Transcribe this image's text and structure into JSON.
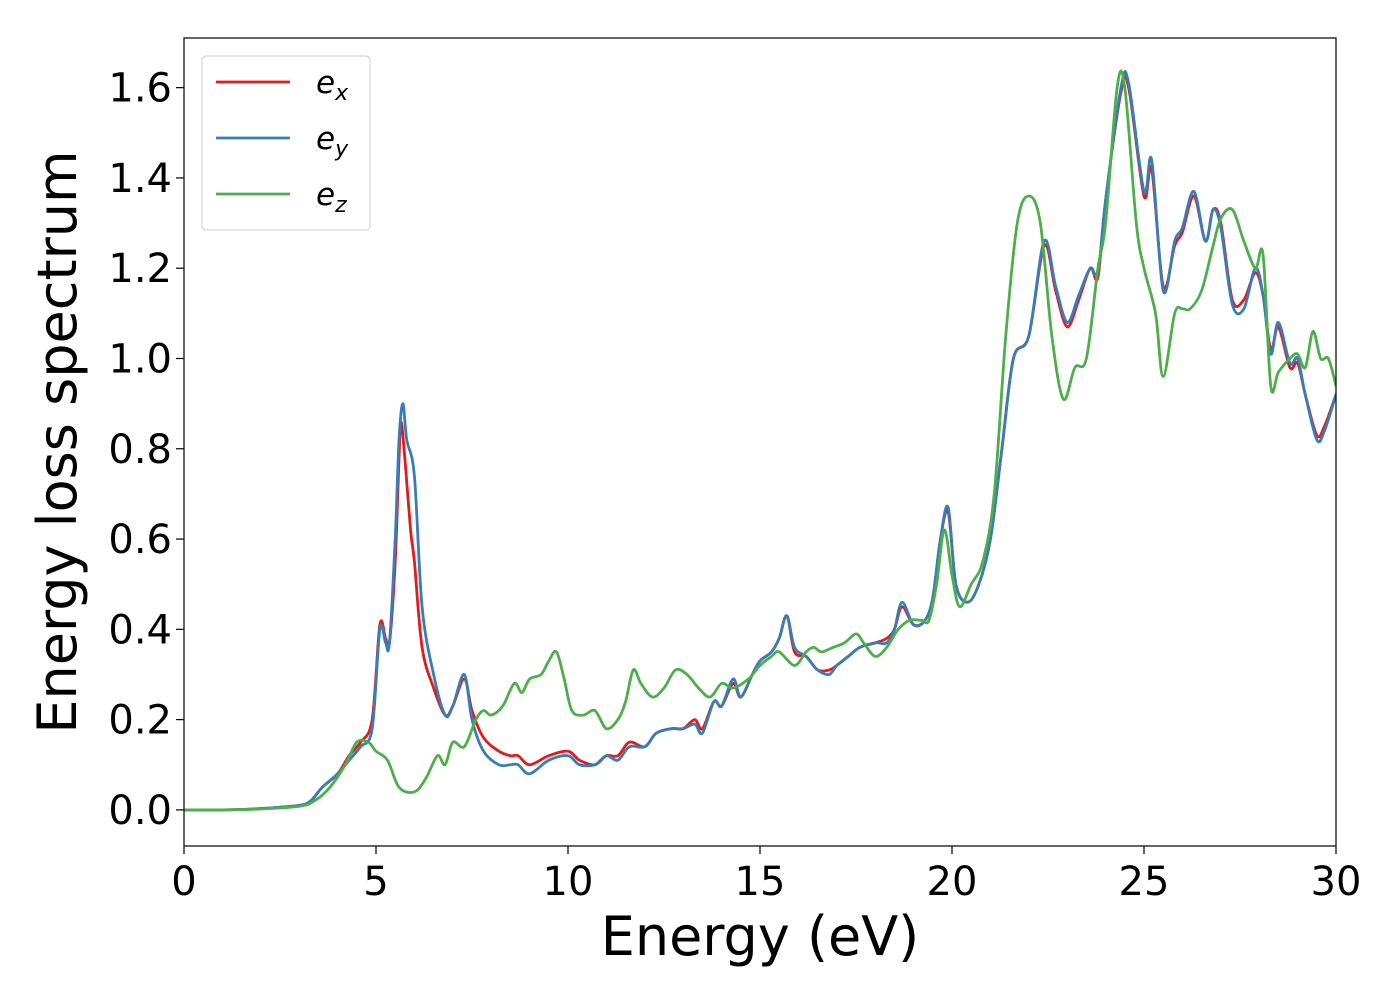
{
  "chart_data": {
    "type": "line",
    "title": "",
    "xlabel": "Energy (eV)",
    "ylabel": "Energy loss spectrum",
    "xlim": [
      0,
      30
    ],
    "ylim": [
      -0.08,
      1.71
    ],
    "xticks": [
      0,
      5,
      10,
      15,
      20,
      25,
      30
    ],
    "xtick_labels": [
      "0",
      "5",
      "10",
      "15",
      "20",
      "25",
      "30"
    ],
    "yticks": [
      0.0,
      0.2,
      0.4,
      0.6,
      0.8,
      1.0,
      1.2,
      1.4,
      1.6
    ],
    "ytick_labels": [
      "0.0",
      "0.2",
      "0.4",
      "0.6",
      "0.8",
      "1.0",
      "1.2",
      "1.4",
      "1.6"
    ],
    "grid": false,
    "legend_position": "top-left",
    "series": [
      {
        "name": "e_x",
        "label_base": "e",
        "label_sub": "x",
        "color": "#e41a1c",
        "points": [
          [
            0,
            0
          ],
          [
            1,
            0
          ],
          [
            2,
            0.003
          ],
          [
            3,
            0.01
          ],
          [
            3.3,
            0.02
          ],
          [
            3.6,
            0.05
          ],
          [
            4,
            0.08
          ],
          [
            4.3,
            0.12
          ],
          [
            4.6,
            0.15
          ],
          [
            4.9,
            0.2
          ],
          [
            5.1,
            0.41
          ],
          [
            5.25,
            0.38
          ],
          [
            5.35,
            0.37
          ],
          [
            5.5,
            0.55
          ],
          [
            5.6,
            0.78
          ],
          [
            5.65,
            0.86
          ],
          [
            5.75,
            0.78
          ],
          [
            5.9,
            0.62
          ],
          [
            6.0,
            0.55
          ],
          [
            6.2,
            0.36
          ],
          [
            6.5,
            0.27
          ],
          [
            6.8,
            0.21
          ],
          [
            7.0,
            0.23
          ],
          [
            7.3,
            0.29
          ],
          [
            7.5,
            0.22
          ],
          [
            7.8,
            0.16
          ],
          [
            8.2,
            0.13
          ],
          [
            8.5,
            0.12
          ],
          [
            8.7,
            0.12
          ],
          [
            9,
            0.1
          ],
          [
            9.5,
            0.12
          ],
          [
            10,
            0.13
          ],
          [
            10.3,
            0.11
          ],
          [
            10.7,
            0.1
          ],
          [
            11,
            0.12
          ],
          [
            11.3,
            0.12
          ],
          [
            11.6,
            0.15
          ],
          [
            12,
            0.14
          ],
          [
            12.3,
            0.17
          ],
          [
            12.7,
            0.18
          ],
          [
            13,
            0.18
          ],
          [
            13.3,
            0.2
          ],
          [
            13.5,
            0.18
          ],
          [
            13.8,
            0.24
          ],
          [
            14,
            0.23
          ],
          [
            14.3,
            0.28
          ],
          [
            14.5,
            0.25
          ],
          [
            14.8,
            0.3
          ],
          [
            15,
            0.33
          ],
          [
            15.3,
            0.35
          ],
          [
            15.5,
            0.38
          ],
          [
            15.7,
            0.43
          ],
          [
            15.9,
            0.35
          ],
          [
            16.2,
            0.34
          ],
          [
            16.5,
            0.31
          ],
          [
            16.8,
            0.31
          ],
          [
            17,
            0.32
          ],
          [
            17.3,
            0.34
          ],
          [
            17.6,
            0.36
          ],
          [
            18,
            0.37
          ],
          [
            18.3,
            0.38
          ],
          [
            18.5,
            0.4
          ],
          [
            18.7,
            0.45
          ],
          [
            19,
            0.41
          ],
          [
            19.3,
            0.42
          ],
          [
            19.5,
            0.47
          ],
          [
            19.7,
            0.6
          ],
          [
            19.9,
            0.66
          ],
          [
            20.1,
            0.5
          ],
          [
            20.4,
            0.46
          ],
          [
            20.7,
            0.5
          ],
          [
            21,
            0.6
          ],
          [
            21.3,
            0.8
          ],
          [
            21.6,
            1.0
          ],
          [
            22,
            1.05
          ],
          [
            22.4,
            1.25
          ],
          [
            22.7,
            1.15
          ],
          [
            23,
            1.07
          ],
          [
            23.3,
            1.13
          ],
          [
            23.6,
            1.2
          ],
          [
            23.8,
            1.18
          ],
          [
            24,
            1.35
          ],
          [
            24.4,
            1.59
          ],
          [
            24.6,
            1.6
          ],
          [
            25,
            1.36
          ],
          [
            25.2,
            1.42
          ],
          [
            25.5,
            1.16
          ],
          [
            25.8,
            1.25
          ],
          [
            26,
            1.28
          ],
          [
            26.3,
            1.36
          ],
          [
            26.6,
            1.26
          ],
          [
            26.8,
            1.33
          ],
          [
            27,
            1.3
          ],
          [
            27.3,
            1.13
          ],
          [
            27.6,
            1.13
          ],
          [
            27.9,
            1.19
          ],
          [
            28.1,
            1.14
          ],
          [
            28.3,
            1.02
          ],
          [
            28.5,
            1.07
          ],
          [
            28.8,
            0.98
          ],
          [
            29,
            0.99
          ],
          [
            29.2,
            0.92
          ],
          [
            29.5,
            0.83
          ],
          [
            29.7,
            0.85
          ],
          [
            30,
            0.92
          ]
        ]
      },
      {
        "name": "e_y",
        "label_base": "e",
        "label_sub": "y",
        "color": "#377eb8",
        "points": [
          [
            0,
            0
          ],
          [
            1,
            0
          ],
          [
            2,
            0.003
          ],
          [
            3,
            0.01
          ],
          [
            3.3,
            0.02
          ],
          [
            3.6,
            0.05
          ],
          [
            4,
            0.08
          ],
          [
            4.3,
            0.11
          ],
          [
            4.6,
            0.14
          ],
          [
            4.9,
            0.18
          ],
          [
            5.1,
            0.4
          ],
          [
            5.25,
            0.37
          ],
          [
            5.35,
            0.37
          ],
          [
            5.5,
            0.6
          ],
          [
            5.6,
            0.82
          ],
          [
            5.7,
            0.9
          ],
          [
            5.8,
            0.82
          ],
          [
            6.0,
            0.74
          ],
          [
            6.2,
            0.45
          ],
          [
            6.5,
            0.3
          ],
          [
            6.8,
            0.21
          ],
          [
            7.0,
            0.23
          ],
          [
            7.3,
            0.3
          ],
          [
            7.5,
            0.2
          ],
          [
            7.8,
            0.13
          ],
          [
            8.2,
            0.1
          ],
          [
            8.5,
            0.1
          ],
          [
            8.7,
            0.1
          ],
          [
            9,
            0.08
          ],
          [
            9.5,
            0.11
          ],
          [
            10,
            0.12
          ],
          [
            10.3,
            0.1
          ],
          [
            10.7,
            0.1
          ],
          [
            11,
            0.12
          ],
          [
            11.3,
            0.11
          ],
          [
            11.6,
            0.14
          ],
          [
            12,
            0.14
          ],
          [
            12.3,
            0.17
          ],
          [
            12.7,
            0.18
          ],
          [
            13,
            0.18
          ],
          [
            13.3,
            0.19
          ],
          [
            13.5,
            0.17
          ],
          [
            13.8,
            0.24
          ],
          [
            14,
            0.23
          ],
          [
            14.3,
            0.29
          ],
          [
            14.5,
            0.25
          ],
          [
            14.8,
            0.3
          ],
          [
            15,
            0.33
          ],
          [
            15.3,
            0.35
          ],
          [
            15.5,
            0.38
          ],
          [
            15.7,
            0.43
          ],
          [
            15.9,
            0.36
          ],
          [
            16.2,
            0.34
          ],
          [
            16.5,
            0.31
          ],
          [
            16.8,
            0.3
          ],
          [
            17,
            0.32
          ],
          [
            17.3,
            0.34
          ],
          [
            17.6,
            0.36
          ],
          [
            18,
            0.37
          ],
          [
            18.3,
            0.37
          ],
          [
            18.5,
            0.4
          ],
          [
            18.7,
            0.46
          ],
          [
            19,
            0.41
          ],
          [
            19.3,
            0.42
          ],
          [
            19.5,
            0.47
          ],
          [
            19.7,
            0.6
          ],
          [
            19.9,
            0.67
          ],
          [
            20.1,
            0.5
          ],
          [
            20.4,
            0.46
          ],
          [
            20.7,
            0.5
          ],
          [
            21,
            0.6
          ],
          [
            21.3,
            0.8
          ],
          [
            21.6,
            1.0
          ],
          [
            22,
            1.05
          ],
          [
            22.4,
            1.26
          ],
          [
            22.7,
            1.16
          ],
          [
            23,
            1.08
          ],
          [
            23.3,
            1.14
          ],
          [
            23.6,
            1.2
          ],
          [
            23.8,
            1.19
          ],
          [
            24,
            1.35
          ],
          [
            24.4,
            1.6
          ],
          [
            24.6,
            1.61
          ],
          [
            25,
            1.37
          ],
          [
            25.2,
            1.44
          ],
          [
            25.5,
            1.15
          ],
          [
            25.8,
            1.26
          ],
          [
            26,
            1.29
          ],
          [
            26.3,
            1.37
          ],
          [
            26.6,
            1.26
          ],
          [
            26.8,
            1.33
          ],
          [
            27,
            1.29
          ],
          [
            27.3,
            1.12
          ],
          [
            27.6,
            1.11
          ],
          [
            27.9,
            1.2
          ],
          [
            28.1,
            1.14
          ],
          [
            28.3,
            1.01
          ],
          [
            28.5,
            1.08
          ],
          [
            28.8,
            0.99
          ],
          [
            29,
            1.0
          ],
          [
            29.2,
            0.92
          ],
          [
            29.5,
            0.82
          ],
          [
            29.7,
            0.84
          ],
          [
            30,
            0.92
          ]
        ]
      },
      {
        "name": "e_z",
        "label_base": "e",
        "label_sub": "z",
        "color": "#4daf4a",
        "points": [
          [
            0,
            0
          ],
          [
            1,
            0
          ],
          [
            2,
            0.002
          ],
          [
            3,
            0.008
          ],
          [
            3.4,
            0.02
          ],
          [
            3.8,
            0.05
          ],
          [
            4.2,
            0.1
          ],
          [
            4.5,
            0.15
          ],
          [
            4.8,
            0.15
          ],
          [
            5.0,
            0.13
          ],
          [
            5.3,
            0.11
          ],
          [
            5.6,
            0.05
          ],
          [
            6.0,
            0.04
          ],
          [
            6.3,
            0.07
          ],
          [
            6.6,
            0.12
          ],
          [
            6.8,
            0.1
          ],
          [
            7.0,
            0.15
          ],
          [
            7.3,
            0.14
          ],
          [
            7.6,
            0.2
          ],
          [
            7.8,
            0.22
          ],
          [
            8.0,
            0.21
          ],
          [
            8.3,
            0.23
          ],
          [
            8.6,
            0.28
          ],
          [
            8.8,
            0.26
          ],
          [
            9.0,
            0.29
          ],
          [
            9.3,
            0.3
          ],
          [
            9.5,
            0.33
          ],
          [
            9.7,
            0.35
          ],
          [
            9.9,
            0.29
          ],
          [
            10.1,
            0.22
          ],
          [
            10.4,
            0.21
          ],
          [
            10.7,
            0.22
          ],
          [
            11,
            0.18
          ],
          [
            11.3,
            0.2
          ],
          [
            11.5,
            0.24
          ],
          [
            11.7,
            0.31
          ],
          [
            11.9,
            0.28
          ],
          [
            12.2,
            0.25
          ],
          [
            12.5,
            0.27
          ],
          [
            12.8,
            0.31
          ],
          [
            13.1,
            0.3
          ],
          [
            13.4,
            0.27
          ],
          [
            13.7,
            0.25
          ],
          [
            14,
            0.28
          ],
          [
            14.3,
            0.27
          ],
          [
            14.7,
            0.29
          ],
          [
            15,
            0.32
          ],
          [
            15.3,
            0.34
          ],
          [
            15.5,
            0.35
          ],
          [
            15.9,
            0.32
          ],
          [
            16.2,
            0.35
          ],
          [
            16.4,
            0.36
          ],
          [
            16.6,
            0.35
          ],
          [
            16.9,
            0.36
          ],
          [
            17.2,
            0.37
          ],
          [
            17.5,
            0.39
          ],
          [
            17.7,
            0.37
          ],
          [
            18.0,
            0.34
          ],
          [
            18.3,
            0.36
          ],
          [
            18.6,
            0.4
          ],
          [
            18.9,
            0.42
          ],
          [
            19.2,
            0.42
          ],
          [
            19.4,
            0.42
          ],
          [
            19.6,
            0.5
          ],
          [
            19.8,
            0.62
          ],
          [
            20.0,
            0.52
          ],
          [
            20.2,
            0.45
          ],
          [
            20.5,
            0.5
          ],
          [
            20.8,
            0.55
          ],
          [
            21.1,
            0.7
          ],
          [
            21.4,
            1.05
          ],
          [
            21.7,
            1.3
          ],
          [
            22.0,
            1.36
          ],
          [
            22.3,
            1.3
          ],
          [
            22.6,
            1.05
          ],
          [
            22.9,
            0.91
          ],
          [
            23.2,
            0.98
          ],
          [
            23.5,
            1.0
          ],
          [
            23.8,
            1.2
          ],
          [
            24.0,
            1.3
          ],
          [
            24.3,
            1.6
          ],
          [
            24.5,
            1.6
          ],
          [
            24.8,
            1.3
          ],
          [
            25.0,
            1.2
          ],
          [
            25.3,
            1.1
          ],
          [
            25.5,
            0.96
          ],
          [
            25.8,
            1.1
          ],
          [
            26.0,
            1.11
          ],
          [
            26.2,
            1.11
          ],
          [
            26.5,
            1.15
          ],
          [
            26.8,
            1.25
          ],
          [
            27.0,
            1.31
          ],
          [
            27.3,
            1.33
          ],
          [
            27.6,
            1.26
          ],
          [
            27.9,
            1.2
          ],
          [
            28.1,
            1.23
          ],
          [
            28.3,
            0.94
          ],
          [
            28.5,
            0.97
          ],
          [
            28.8,
            1.0
          ],
          [
            29.0,
            1.01
          ],
          [
            29.2,
            0.98
          ],
          [
            29.4,
            1.06
          ],
          [
            29.6,
            1.0
          ],
          [
            29.8,
            1.0
          ],
          [
            30,
            0.94
          ]
        ]
      }
    ]
  }
}
